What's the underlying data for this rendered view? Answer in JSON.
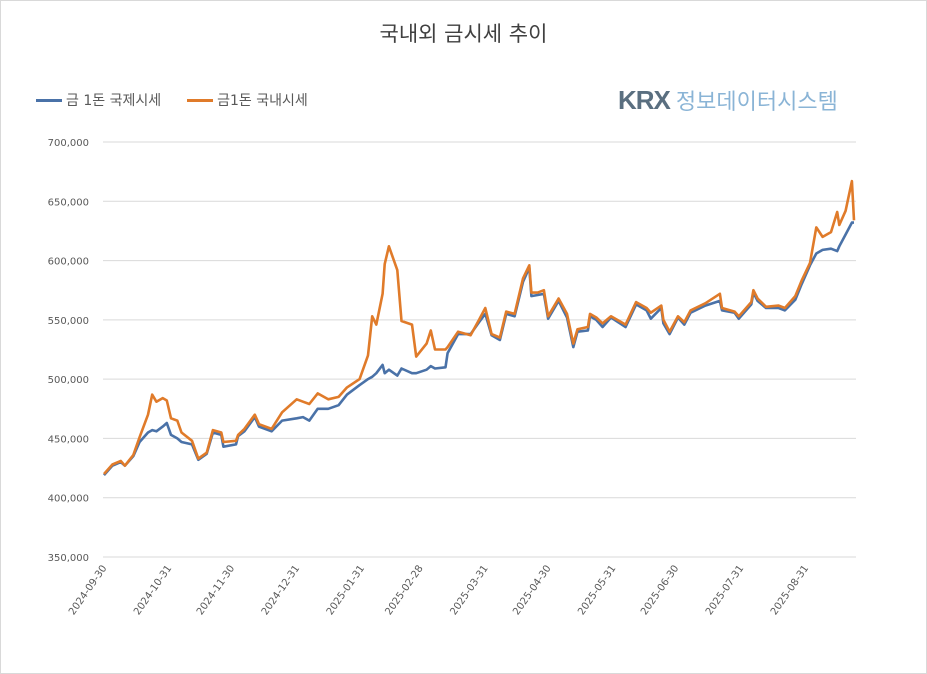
{
  "chart_data": {
    "type": "line",
    "title": "국내외 금시세 추이",
    "xlabel": "",
    "ylabel": "",
    "ylim": [
      350000,
      700000
    ],
    "yticks": [
      "350,000",
      "400,000",
      "450,000",
      "500,000",
      "550,000",
      "600,000",
      "650,000",
      "700,000"
    ],
    "ytick_values": [
      350000,
      400000,
      450000,
      500000,
      550000,
      600000,
      650000,
      700000
    ],
    "xlim": [
      "2024-09-30",
      "2025-09-23"
    ],
    "xticks": [
      "2024-09-30",
      "2024-10-31",
      "2024-11-30",
      "2024-12-31",
      "2025-01-31",
      "2025-02-28",
      "2025-03-31",
      "2025-04-30",
      "2025-05-31",
      "2025-06-30",
      "2025-07-31",
      "2025-08-31"
    ],
    "grid": true,
    "legend_position": "top-left",
    "x": [
      "2024-09-30",
      "2024-10-04",
      "2024-10-08",
      "2024-10-10",
      "2024-10-14",
      "2024-10-17",
      "2024-10-21",
      "2024-10-23",
      "2024-10-25",
      "2024-10-28",
      "2024-10-30",
      "2024-11-01",
      "2024-11-04",
      "2024-11-06",
      "2024-11-11",
      "2024-11-14",
      "2024-11-18",
      "2024-11-21",
      "2024-11-25",
      "2024-11-26",
      "2024-12-02",
      "2024-12-03",
      "2024-12-06",
      "2024-12-11",
      "2024-12-13",
      "2024-12-19",
      "2024-12-24",
      "2024-12-31",
      "2025-01-03",
      "2025-01-06",
      "2025-01-10",
      "2025-01-15",
      "2025-01-20",
      "2025-01-24",
      "2025-01-30",
      "2025-02-03",
      "2025-02-05",
      "2025-02-07",
      "2025-02-10",
      "2025-02-11",
      "2025-02-13",
      "2025-02-17",
      "2025-02-19",
      "2025-02-24",
      "2025-02-26",
      "2025-03-03",
      "2025-03-05",
      "2025-03-07",
      "2025-03-12",
      "2025-03-13",
      "2025-03-18",
      "2025-03-24",
      "2025-03-28",
      "2025-03-31",
      "2025-04-03",
      "2025-04-07",
      "2025-04-10",
      "2025-04-14",
      "2025-04-18",
      "2025-04-21",
      "2025-04-22",
      "2025-04-25",
      "2025-04-28",
      "2025-04-30",
      "2025-05-05",
      "2025-05-09",
      "2025-05-12",
      "2025-05-14",
      "2025-05-19",
      "2025-05-20",
      "2025-05-23",
      "2025-05-26",
      "2025-05-30",
      "2025-06-06",
      "2025-06-11",
      "2025-06-16",
      "2025-06-18",
      "2025-06-23",
      "2025-06-24",
      "2025-06-27",
      "2025-07-01",
      "2025-07-04",
      "2025-07-07",
      "2025-07-14",
      "2025-07-21",
      "2025-07-22",
      "2025-07-28",
      "2025-07-30",
      "2025-08-05",
      "2025-08-06",
      "2025-08-08",
      "2025-08-12",
      "2025-08-18",
      "2025-08-21",
      "2025-08-26",
      "2025-08-29",
      "2025-09-02",
      "2025-09-05",
      "2025-09-08",
      "2025-09-12",
      "2025-09-15",
      "2025-09-16",
      "2025-09-19",
      "2025-09-22",
      "2025-09-23"
    ],
    "series": [
      {
        "name": "금 1돈 국제시세",
        "color": "#4a72a8",
        "values": [
          419000,
          427000,
          430000,
          427000,
          435000,
          447000,
          455000,
          457000,
          456000,
          460000,
          463000,
          453000,
          450000,
          447000,
          445000,
          432000,
          437000,
          455000,
          453000,
          443000,
          445000,
          452000,
          456000,
          468000,
          460000,
          456000,
          465000,
          467000,
          468000,
          465000,
          475000,
          475000,
          478000,
          487000,
          495000,
          500000,
          502000,
          505000,
          512000,
          505000,
          508000,
          503000,
          509000,
          505000,
          505000,
          508000,
          511000,
          509000,
          510000,
          522000,
          538000,
          538000,
          548000,
          555000,
          537000,
          533000,
          555000,
          553000,
          582000,
          594000,
          570000,
          571000,
          572000,
          551000,
          566000,
          552000,
          527000,
          540000,
          541000,
          553000,
          550000,
          544000,
          552000,
          544000,
          563000,
          558000,
          551000,
          560000,
          547000,
          538000,
          552000,
          546000,
          556000,
          562000,
          566000,
          558000,
          556000,
          551000,
          563000,
          573000,
          566000,
          560000,
          560000,
          558000,
          567000,
          580000,
          596000,
          606000,
          609000,
          610000,
          608000,
          612000,
          622000,
          632000,
          632000
        ]
      },
      {
        "name": "금1돈 국내시세",
        "color": "#e07b2a",
        "values": [
          420000,
          428000,
          431000,
          427000,
          436000,
          451000,
          470000,
          487000,
          481000,
          484000,
          482000,
          467000,
          465000,
          455000,
          448000,
          433000,
          438000,
          457000,
          455000,
          447000,
          448000,
          453000,
          458000,
          470000,
          462000,
          458000,
          472000,
          483000,
          481000,
          479000,
          488000,
          483000,
          485000,
          493000,
          500000,
          520000,
          553000,
          546000,
          572000,
          597000,
          612000,
          592000,
          549000,
          546000,
          519000,
          530000,
          541000,
          525000,
          525000,
          527000,
          540000,
          537000,
          550000,
          560000,
          538000,
          535000,
          557000,
          555000,
          585000,
          596000,
          573000,
          573000,
          575000,
          553000,
          568000,
          555000,
          530000,
          542000,
          544000,
          555000,
          552000,
          547000,
          553000,
          546000,
          565000,
          560000,
          556000,
          562000,
          550000,
          540000,
          553000,
          548000,
          558000,
          564000,
          572000,
          560000,
          557000,
          553000,
          565000,
          575000,
          568000,
          561000,
          562000,
          560000,
          570000,
          583000,
          598000,
          628000,
          620000,
          624000,
          641000,
          630000,
          642000,
          667000,
          634000
        ]
      }
    ]
  },
  "logo": {
    "brand": "KRX",
    "text": "정보데이터시스템"
  }
}
